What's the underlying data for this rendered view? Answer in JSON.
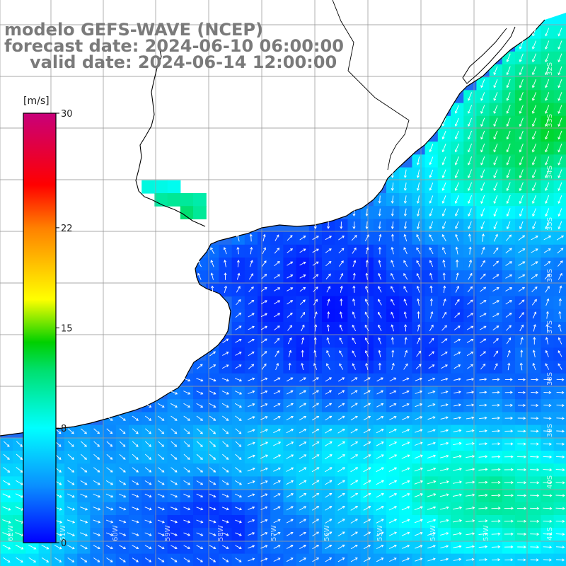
{
  "title": {
    "line1": "modelo GEFS-WAVE (NCEP)",
    "line2": "forecast date: 2024-06-10 06:00:00",
    "line3": "valid date: 2024-06-14 12:00:00"
  },
  "colorbar": {
    "unit": "[m/s]",
    "ticks": [
      "30",
      "22",
      "15",
      "8",
      "0"
    ],
    "tick_values": [
      30,
      22,
      15,
      8,
      0
    ],
    "min": 0,
    "max": 30,
    "stops": [
      {
        "v": 0,
        "color": "#0000ff"
      },
      {
        "v": 4,
        "color": "#0a90ff"
      },
      {
        "v": 8,
        "color": "#00ffff"
      },
      {
        "v": 12,
        "color": "#00e070"
      },
      {
        "v": 14,
        "color": "#00d000"
      },
      {
        "v": 17,
        "color": "#ffff00"
      },
      {
        "v": 22,
        "color": "#ff8000"
      },
      {
        "v": 25,
        "color": "#ff0000"
      },
      {
        "v": 30,
        "color": "#c8007a"
      }
    ]
  },
  "map": {
    "lat_labels": [
      "32S",
      "33S",
      "34S",
      "35S",
      "36S",
      "37S",
      "38S",
      "39S",
      "40S",
      "41S"
    ],
    "lon_labels": [
      "62W",
      "61W",
      "60W",
      "59W",
      "58W",
      "57W",
      "56W",
      "55W",
      "54W",
      "53W"
    ],
    "field_color_ocean": "#1e6cf2",
    "land_color": "#ffffff",
    "coast_color": "#000000",
    "grid_color": "#9a9a9a",
    "arrow_color": "#ffffff"
  }
}
